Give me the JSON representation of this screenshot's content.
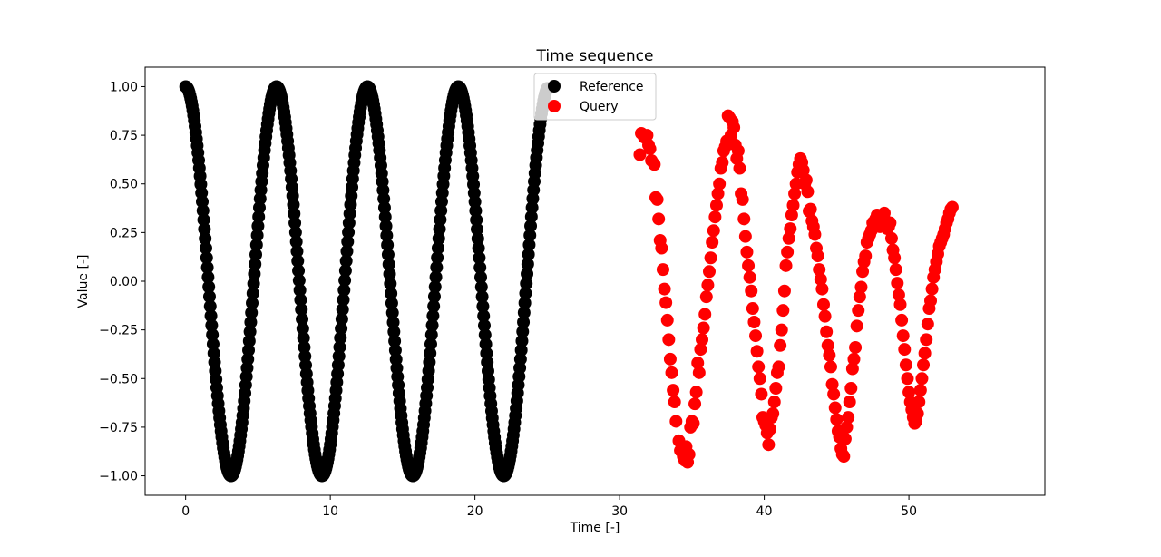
{
  "chart_data": {
    "type": "scatter",
    "title": "Time sequence",
    "xlabel": "Time [-]",
    "ylabel": "Value [-]",
    "xlim": [
      -2.8,
      59.4
    ],
    "ylim": [
      -1.1,
      1.1
    ],
    "x_ticks": [
      0,
      10,
      20,
      30,
      40,
      50
    ],
    "x_tick_labels": [
      "0",
      "10",
      "20",
      "30",
      "40",
      "50"
    ],
    "y_ticks": [
      1.0,
      0.75,
      0.5,
      0.25,
      0.0,
      -0.25,
      -0.5,
      -0.75,
      -1.0
    ],
    "y_tick_labels": [
      "1.00",
      "0.75",
      "0.50",
      "0.25",
      "0.00",
      "−0.25",
      "−0.50",
      "−0.75",
      "−1.00"
    ],
    "grid": false,
    "legend_position": "top-center",
    "series": [
      {
        "name": "Reference",
        "color": "#000000",
        "function": "cos(t)",
        "x_start": 0,
        "x_end": 25,
        "x_step": 0.05
      },
      {
        "name": "Query",
        "color": "#ff0000",
        "points": [
          [
            31.4,
            0.65
          ],
          [
            31.5,
            0.76
          ],
          [
            31.7,
            0.74
          ],
          [
            31.9,
            0.75
          ],
          [
            32.0,
            0.7
          ],
          [
            32.1,
            0.68
          ],
          [
            32.2,
            0.62
          ],
          [
            32.4,
            0.6
          ],
          [
            32.5,
            0.43
          ],
          [
            32.6,
            0.42
          ],
          [
            32.7,
            0.32
          ],
          [
            32.8,
            0.21
          ],
          [
            32.9,
            0.17
          ],
          [
            33.0,
            0.06
          ],
          [
            33.1,
            -0.04
          ],
          [
            33.2,
            -0.11
          ],
          [
            33.3,
            -0.2
          ],
          [
            33.4,
            -0.3
          ],
          [
            33.5,
            -0.4
          ],
          [
            33.6,
            -0.47
          ],
          [
            33.7,
            -0.56
          ],
          [
            33.8,
            -0.62
          ],
          [
            33.9,
            -0.72
          ],
          [
            34.1,
            -0.82
          ],
          [
            34.2,
            -0.87
          ],
          [
            34.3,
            -0.86
          ],
          [
            34.4,
            -0.9
          ],
          [
            34.5,
            -0.92
          ],
          [
            34.6,
            -0.85
          ],
          [
            34.7,
            -0.93
          ],
          [
            34.8,
            -0.89
          ],
          [
            34.9,
            -0.75
          ],
          [
            35.0,
            -0.72
          ],
          [
            35.1,
            -0.73
          ],
          [
            35.2,
            -0.63
          ],
          [
            35.3,
            -0.57
          ],
          [
            35.4,
            -0.42
          ],
          [
            35.5,
            -0.47
          ],
          [
            35.6,
            -0.35
          ],
          [
            35.7,
            -0.3
          ],
          [
            35.8,
            -0.24
          ],
          [
            35.9,
            -0.17
          ],
          [
            36.0,
            -0.08
          ],
          [
            36.1,
            -0.02
          ],
          [
            36.2,
            0.05
          ],
          [
            36.3,
            0.12
          ],
          [
            36.4,
            0.2
          ],
          [
            36.5,
            0.26
          ],
          [
            36.6,
            0.33
          ],
          [
            36.7,
            0.39
          ],
          [
            36.8,
            0.45
          ],
          [
            36.9,
            0.5
          ],
          [
            37.0,
            0.58
          ],
          [
            37.1,
            0.61
          ],
          [
            37.2,
            0.67
          ],
          [
            37.3,
            0.69
          ],
          [
            37.4,
            0.72
          ],
          [
            37.5,
            0.85
          ],
          [
            37.6,
            0.84
          ],
          [
            37.7,
            0.75
          ],
          [
            37.8,
            0.82
          ],
          [
            37.9,
            0.79
          ],
          [
            38.0,
            0.7
          ],
          [
            38.1,
            0.63
          ],
          [
            38.2,
            0.67
          ],
          [
            38.3,
            0.58
          ],
          [
            38.4,
            0.45
          ],
          [
            38.5,
            0.42
          ],
          [
            38.6,
            0.32
          ],
          [
            38.7,
            0.23
          ],
          [
            38.8,
            0.15
          ],
          [
            38.9,
            0.08
          ],
          [
            39.0,
            0.02
          ],
          [
            39.1,
            -0.05
          ],
          [
            39.2,
            -0.14
          ],
          [
            39.3,
            -0.21
          ],
          [
            39.4,
            -0.28
          ],
          [
            39.5,
            -0.36
          ],
          [
            39.6,
            -0.44
          ],
          [
            39.7,
            -0.5
          ],
          [
            39.8,
            -0.58
          ],
          [
            39.9,
            -0.7
          ],
          [
            40.0,
            -0.72
          ],
          [
            40.1,
            -0.74
          ],
          [
            40.2,
            -0.78
          ],
          [
            40.3,
            -0.84
          ],
          [
            40.4,
            -0.76
          ],
          [
            40.5,
            -0.7
          ],
          [
            40.6,
            -0.68
          ],
          [
            40.7,
            -0.62
          ],
          [
            40.8,
            -0.55
          ],
          [
            40.9,
            -0.47
          ],
          [
            41.0,
            -0.44
          ],
          [
            41.1,
            -0.33
          ],
          [
            41.2,
            -0.25
          ],
          [
            41.3,
            -0.15
          ],
          [
            41.4,
            -0.05
          ],
          [
            41.5,
            0.08
          ],
          [
            41.6,
            0.15
          ],
          [
            41.7,
            0.22
          ],
          [
            41.8,
            0.27
          ],
          [
            41.9,
            0.34
          ],
          [
            42.0,
            0.39
          ],
          [
            42.1,
            0.45
          ],
          [
            42.2,
            0.5
          ],
          [
            42.3,
            0.56
          ],
          [
            42.4,
            0.6
          ],
          [
            42.5,
            0.63
          ],
          [
            42.6,
            0.61
          ],
          [
            42.7,
            0.57
          ],
          [
            42.8,
            0.5
          ],
          [
            42.9,
            0.52
          ],
          [
            43.0,
            0.46
          ],
          [
            43.1,
            0.36
          ],
          [
            43.2,
            0.37
          ],
          [
            43.3,
            0.31
          ],
          [
            43.4,
            0.28
          ],
          [
            43.5,
            0.24
          ],
          [
            43.6,
            0.17
          ],
          [
            43.7,
            0.13
          ],
          [
            43.8,
            0.06
          ],
          [
            43.9,
            0.01
          ],
          [
            44.0,
            -0.04
          ],
          [
            44.1,
            -0.12
          ],
          [
            44.2,
            -0.18
          ],
          [
            44.3,
            -0.26
          ],
          [
            44.4,
            -0.33
          ],
          [
            44.5,
            -0.38
          ],
          [
            44.6,
            -0.44
          ],
          [
            44.7,
            -0.53
          ],
          [
            44.8,
            -0.58
          ],
          [
            44.9,
            -0.65
          ],
          [
            45.0,
            -0.71
          ],
          [
            45.1,
            -0.77
          ],
          [
            45.2,
            -0.8
          ],
          [
            45.3,
            -0.86
          ],
          [
            45.4,
            -0.89
          ],
          [
            45.5,
            -0.9
          ],
          [
            45.6,
            -0.81
          ],
          [
            45.7,
            -0.75
          ],
          [
            45.8,
            -0.7
          ],
          [
            45.9,
            -0.62
          ],
          [
            46.0,
            -0.55
          ],
          [
            46.1,
            -0.45
          ],
          [
            46.2,
            -0.4
          ],
          [
            46.3,
            -0.34
          ],
          [
            46.4,
            -0.23
          ],
          [
            46.5,
            -0.15
          ],
          [
            46.6,
            -0.08
          ],
          [
            46.7,
            -0.03
          ],
          [
            46.8,
            0.05
          ],
          [
            46.9,
            0.1
          ],
          [
            47.0,
            0.13
          ],
          [
            47.1,
            0.2
          ],
          [
            47.2,
            0.22
          ],
          [
            47.3,
            0.24
          ],
          [
            47.4,
            0.26
          ],
          [
            47.5,
            0.3
          ],
          [
            47.6,
            0.28
          ],
          [
            47.7,
            0.32
          ],
          [
            47.8,
            0.34
          ],
          [
            47.9,
            0.3
          ],
          [
            48.0,
            0.28
          ],
          [
            48.1,
            0.3
          ],
          [
            48.2,
            0.32
          ],
          [
            48.3,
            0.35
          ],
          [
            48.4,
            0.31
          ],
          [
            48.5,
            0.27
          ],
          [
            48.6,
            0.28
          ],
          [
            48.7,
            0.3
          ],
          [
            48.8,
            0.22
          ],
          [
            48.9,
            0.16
          ],
          [
            49.0,
            0.12
          ],
          [
            49.1,
            0.06
          ],
          [
            49.2,
            -0.01
          ],
          [
            49.3,
            -0.07
          ],
          [
            49.4,
            -0.12
          ],
          [
            49.5,
            -0.2
          ],
          [
            49.6,
            -0.28
          ],
          [
            49.7,
            -0.35
          ],
          [
            49.8,
            -0.43
          ],
          [
            49.9,
            -0.5
          ],
          [
            50.0,
            -0.57
          ],
          [
            50.1,
            -0.62
          ],
          [
            50.2,
            -0.66
          ],
          [
            50.3,
            -0.7
          ],
          [
            50.4,
            -0.73
          ],
          [
            50.5,
            -0.72
          ],
          [
            50.6,
            -0.68
          ],
          [
            50.7,
            -0.62
          ],
          [
            50.8,
            -0.56
          ],
          [
            50.9,
            -0.5
          ],
          [
            51.0,
            -0.43
          ],
          [
            51.1,
            -0.37
          ],
          [
            51.2,
            -0.3
          ],
          [
            51.3,
            -0.22
          ],
          [
            51.4,
            -0.14
          ],
          [
            51.5,
            -0.1
          ],
          [
            51.6,
            -0.04
          ],
          [
            51.7,
            0.02
          ],
          [
            51.8,
            0.06
          ],
          [
            51.9,
            0.1
          ],
          [
            52.0,
            0.14
          ],
          [
            52.1,
            0.18
          ],
          [
            52.2,
            0.2
          ],
          [
            52.3,
            0.22
          ],
          [
            52.4,
            0.24
          ],
          [
            52.5,
            0.27
          ],
          [
            52.6,
            0.3
          ],
          [
            52.7,
            0.32
          ],
          [
            52.8,
            0.35
          ],
          [
            52.9,
            0.37
          ],
          [
            53.0,
            0.38
          ]
        ]
      }
    ]
  }
}
